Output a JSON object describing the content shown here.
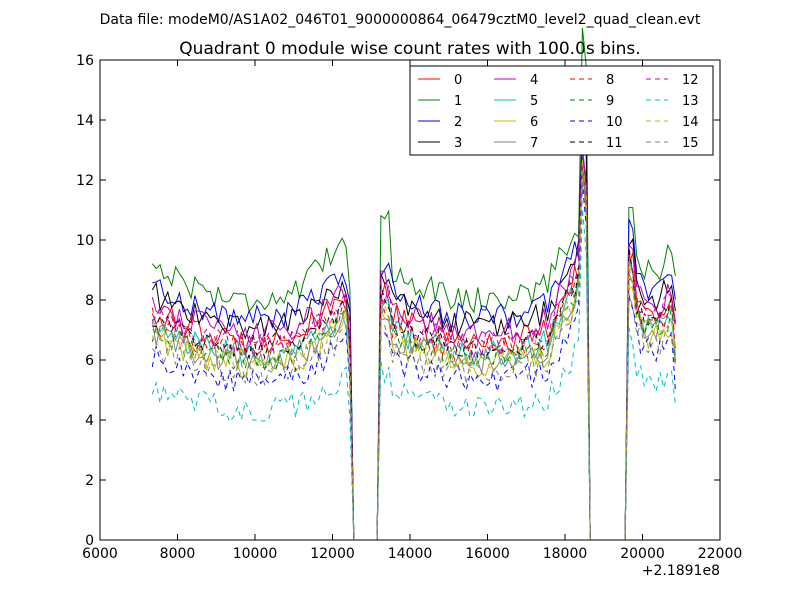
{
  "chart_data": {
    "type": "line",
    "suptitle": "Data file: modeM0/AS1A02_046T01_9000000864_06479cztM0_level2_quad_clean.evt",
    "title": "Quadrant 0 module wise count rates with 100.0s bins.",
    "xlabel": "",
    "ylabel": "",
    "x_offset_label": "+2.1891e8",
    "xlim": [
      6000,
      22000
    ],
    "ylim": [
      0,
      16
    ],
    "xticks": [
      "6000",
      "8000",
      "10000",
      "12000",
      "14000",
      "16000",
      "18000",
      "20000",
      "22000"
    ],
    "yticks": [
      "0",
      "2",
      "4",
      "6",
      "8",
      "10",
      "12",
      "14",
      "16"
    ],
    "legend_loc": "upper right",
    "legend_ncol": 4,
    "bin_seconds": 100,
    "segments": [
      {
        "start": 7350,
        "end": 12450,
        "rise": 0.0
      },
      {
        "start": 13250,
        "end": 18550,
        "rise": 1.8
      },
      {
        "start": 19650,
        "end": 20850,
        "rise": 0.4
      }
    ],
    "gap_ranges": [
      [
        12550,
        13150
      ],
      [
        18750,
        19550
      ]
    ],
    "series": [
      {
        "name": "0",
        "color": "#ff0000",
        "dashed": false,
        "level": 7.6
      },
      {
        "name": "1",
        "color": "#008000",
        "dashed": false,
        "level": 9.2
      },
      {
        "name": "2",
        "color": "#0000ff",
        "dashed": false,
        "level": 8.5
      },
      {
        "name": "3",
        "color": "#000000",
        "dashed": false,
        "level": 8.2
      },
      {
        "name": "4",
        "color": "#bf00bf",
        "dashed": false,
        "level": 7.9
      },
      {
        "name": "5",
        "color": "#00bfbf",
        "dashed": false,
        "level": 7.1
      },
      {
        "name": "6",
        "color": "#bfbf00",
        "dashed": false,
        "level": 6.7
      },
      {
        "name": "7",
        "color": "#808080",
        "dashed": false,
        "level": 6.9
      },
      {
        "name": "8",
        "color": "#ff0000",
        "dashed": true,
        "level": 7.3
      },
      {
        "name": "9",
        "color": "#008000",
        "dashed": true,
        "level": 7.0
      },
      {
        "name": "10",
        "color": "#0000ff",
        "dashed": true,
        "level": 6.1
      },
      {
        "name": "11",
        "color": "#000000",
        "dashed": true,
        "level": 7.4
      },
      {
        "name": "12",
        "color": "#bf00bf",
        "dashed": true,
        "level": 7.5
      },
      {
        "name": "13",
        "color": "#00bfbf",
        "dashed": true,
        "level": 5.0
      },
      {
        "name": "14",
        "color": "#bfbf00",
        "dashed": true,
        "level": 6.9
      },
      {
        "name": "15",
        "color": "#808080",
        "dashed": true,
        "level": 6.4
      }
    ]
  }
}
